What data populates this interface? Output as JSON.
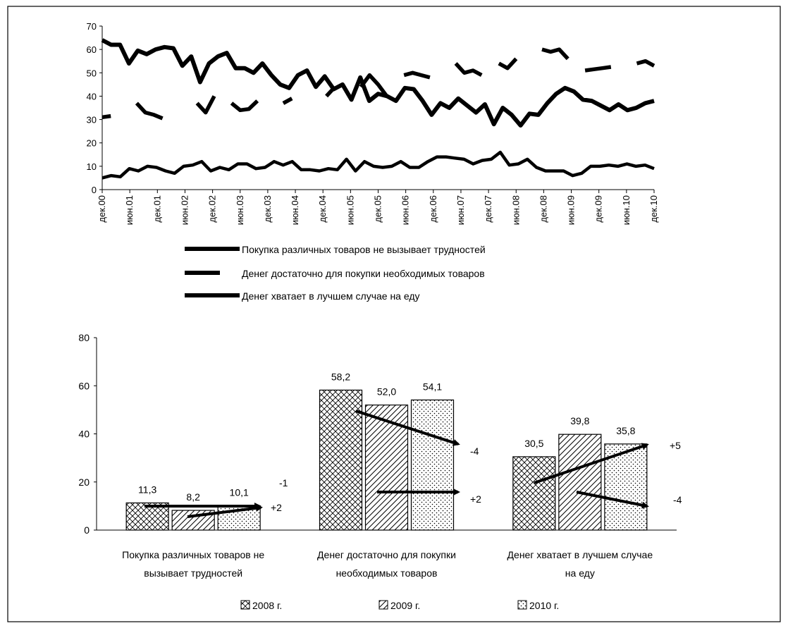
{
  "line_chart": {
    "type": "line",
    "y_ticks": [
      "0",
      "10",
      "20",
      "30",
      "40",
      "50",
      "60",
      "70"
    ],
    "ylim": [
      0,
      70
    ],
    "x_tick_labels": [
      "дек.00",
      "июн.01",
      "дек.01",
      "июн.02",
      "дек.02",
      "июн.03",
      "дек.03",
      "июн.04",
      "дек.04",
      "июн.05",
      "дек.05",
      "июн.06",
      "дек.06",
      "июн.07",
      "дек.07",
      "июн.08",
      "дек.08",
      "июн.09",
      "дек.09",
      "июн.10",
      "дек.10"
    ],
    "series": [
      {
        "name": "Покупка различных товаров не вызывает трудностей",
        "style": "solid",
        "values": [
          5,
          6,
          5.5,
          9,
          8,
          10,
          9.5,
          8,
          7,
          10,
          10.5,
          12,
          8,
          9.5,
          8.5,
          11,
          11,
          9,
          9.5,
          12,
          10.5,
          12,
          8.5,
          8.5,
          8,
          9,
          8.5,
          13,
          8,
          12,
          10,
          9.5,
          10,
          12,
          9.5,
          9.5,
          12,
          14,
          14,
          13.5,
          13,
          11,
          12.5,
          13,
          16,
          10.5,
          11,
          13,
          9.5,
          8,
          8,
          8,
          6,
          7,
          10,
          10,
          10.5,
          10,
          11,
          10,
          10.5,
          9
        ]
      },
      {
        "name": "Денег достаточно для покупки необходимых товаров",
        "style": "dashed",
        "values": [
          31,
          31.5,
          null,
          null,
          37,
          33,
          32,
          30.5,
          null,
          null,
          null,
          37,
          33,
          40,
          null,
          37,
          34,
          34.5,
          38,
          null,
          null,
          37,
          39,
          null,
          null,
          null,
          40,
          44,
          null,
          null,
          44,
          49,
          45,
          40,
          null,
          49,
          50,
          49,
          48,
          null,
          null,
          54,
          50,
          51,
          49,
          null,
          54,
          52,
          56,
          null,
          null,
          60,
          59,
          60,
          56,
          null,
          51,
          51.5,
          52,
          52.5,
          null,
          null,
          54,
          55,
          53
        ]
      },
      {
        "name": "Денег хватает в лучшем случае на еду",
        "style": "solid-thick",
        "values": [
          64,
          62,
          62,
          54,
          59.5,
          58,
          60,
          61,
          60.5,
          53,
          57,
          46,
          54,
          57,
          58.5,
          52,
          52,
          50,
          54,
          49,
          45,
          43.5,
          49,
          51,
          44,
          48.5,
          43,
          45,
          38.5,
          48,
          38,
          41,
          40,
          38,
          43.5,
          43,
          38,
          32,
          37,
          35,
          39,
          36,
          33,
          36.5,
          28,
          35,
          32,
          27.5,
          32.5,
          32,
          37,
          41,
          43.5,
          42,
          38.5,
          38,
          36,
          34,
          36.5,
          34,
          35,
          37,
          38
        ]
      }
    ]
  },
  "bar_chart": {
    "type": "bar",
    "y_ticks": [
      "0",
      "20",
      "40",
      "60",
      "80"
    ],
    "ylim": [
      0,
      80
    ],
    "categories": [
      "Покупка различных товаров не вызывает трудностей",
      "Денег достаточно для покупки необходимых товаров",
      "Денег хватает в лучшем случае на еду"
    ],
    "category_label_lines": [
      [
        "Покупка различных товаров не",
        "вызывает трудностей"
      ],
      [
        "Денег достаточно для покупки",
        "необходимых товаров"
      ],
      [
        "Денег хватает в лучшем случае",
        "на еду"
      ]
    ],
    "series": [
      {
        "name": "2008 г.",
        "pattern": "crosshatch",
        "values": [
          11.3,
          58.2,
          30.5
        ],
        "labels": [
          "11,3",
          "58,2",
          "30,5"
        ]
      },
      {
        "name": "2009 г.",
        "pattern": "diagonal",
        "values": [
          8.2,
          52.0,
          39.8
        ],
        "labels": [
          "8,2",
          "52,0",
          "39,8"
        ]
      },
      {
        "name": "2010 г.",
        "pattern": "dots",
        "values": [
          10.1,
          54.1,
          35.8
        ],
        "labels": [
          "10,1",
          "54,1",
          "35,8"
        ]
      }
    ],
    "change_labels": [
      "-1",
      "+2",
      "-4",
      "+2",
      "+5",
      "-4"
    ]
  }
}
